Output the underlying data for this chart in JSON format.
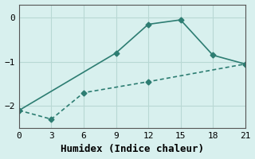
{
  "line1_x": [
    0,
    9,
    12,
    15,
    18,
    21
  ],
  "line1_y": [
    -2.1,
    -0.8,
    -0.15,
    -0.05,
    -0.85,
    -1.05
  ],
  "line2_x": [
    0,
    3,
    6,
    12,
    21
  ],
  "line2_y": [
    -2.1,
    -2.3,
    -1.7,
    -1.45,
    -1.05
  ],
  "color": "#2d7d72",
  "bg_color": "#d8f0ee",
  "grid_color": "#b8d8d4",
  "xlabel": "Humidex (Indice chaleur)",
  "xlim": [
    0,
    21
  ],
  "ylim": [
    -2.5,
    0.3
  ],
  "xticks": [
    0,
    3,
    6,
    9,
    12,
    15,
    18,
    21
  ],
  "yticks": [
    0,
    -1,
    -2
  ],
  "marker": "D",
  "markersize": 3.5,
  "linewidth": 1.2,
  "xlabel_fontsize": 9,
  "tick_fontsize": 8,
  "font_family": "monospace"
}
